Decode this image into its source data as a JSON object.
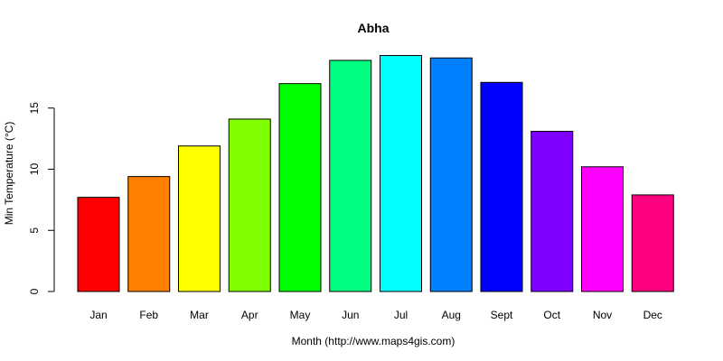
{
  "chart_data": {
    "type": "bar",
    "title": "Abha",
    "xlabel": "Month (http://www.maps4gis.com)",
    "ylabel": "Min Temperature (°C)",
    "categories": [
      "Jan",
      "Feb",
      "Mar",
      "Apr",
      "May",
      "Jun",
      "Jul",
      "Aug",
      "Sept",
      "Oct",
      "Nov",
      "Dec"
    ],
    "values": [
      7.7,
      9.4,
      11.9,
      14.1,
      17.0,
      18.9,
      19.3,
      19.1,
      17.1,
      13.1,
      10.2,
      7.9
    ],
    "yticks": [
      0,
      5,
      10,
      15
    ],
    "ylim": [
      0,
      19.5
    ],
    "colors": [
      "#FF0000",
      "#FF8000",
      "#FFFF00",
      "#80FF00",
      "#00FF00",
      "#00FF80",
      "#00FFFF",
      "#0080FF",
      "#0000FF",
      "#8000FF",
      "#FF00FF",
      "#FF0080"
    ],
    "grid": false,
    "legend": "none"
  }
}
